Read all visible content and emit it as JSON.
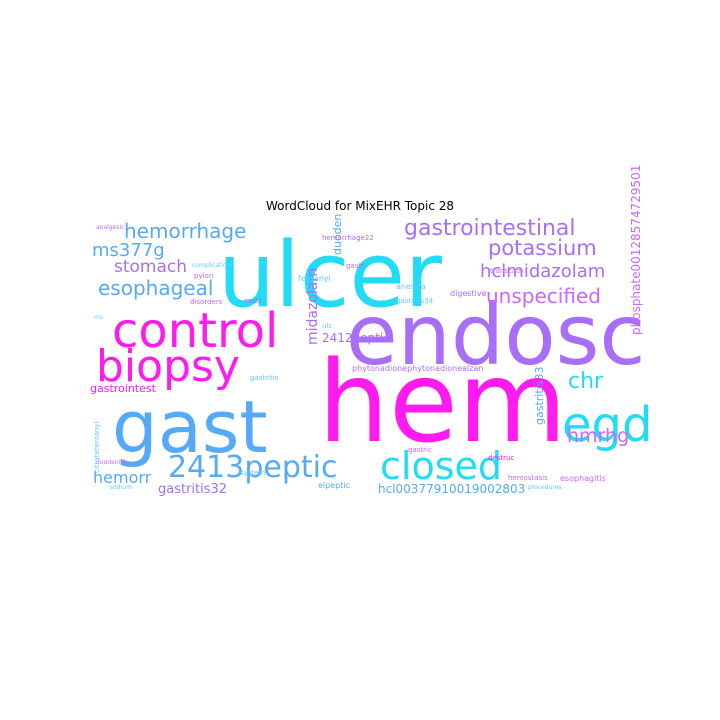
{
  "title": "WordCloud for MixEHR Topic 28",
  "palette": {
    "cyan": "#22dcf5",
    "blue": "#55aaf8",
    "magenta": "#ff1af0",
    "violet": "#a86ef8",
    "orchid": "#cc66ff",
    "lightblue": "#66c8ff"
  },
  "words": [
    {
      "id": "ulcer",
      "text": "ulcer",
      "color": "cyan"
    },
    {
      "id": "hem",
      "text": "hem",
      "color": "magenta"
    },
    {
      "id": "endosc",
      "text": "endosc",
      "color": "violet"
    },
    {
      "id": "gast",
      "text": "gast",
      "color": "blue"
    },
    {
      "id": "control",
      "text": "control",
      "color": "magenta"
    },
    {
      "id": "biopsy",
      "text": "biopsy",
      "color": "magenta"
    },
    {
      "id": "egd",
      "text": "egd",
      "color": "cyan"
    },
    {
      "id": "closed",
      "text": "closed",
      "color": "cyan"
    },
    {
      "id": "2413peptic",
      "text": "2413peptic",
      "color": "blue"
    },
    {
      "id": "gastrointestinal",
      "text": "gastrointestinal",
      "color": "violet"
    },
    {
      "id": "hemorrhage",
      "text": "hemorrhage",
      "color": "blue"
    },
    {
      "id": "potassium",
      "text": "potassium",
      "color": "violet"
    },
    {
      "id": "unspecified",
      "text": "unspecified",
      "color": "orchid"
    },
    {
      "id": "esophageal",
      "text": "esophageal",
      "color": "blue"
    },
    {
      "id": "hclmidazolam",
      "text": "hclmidazolam",
      "color": "violet"
    },
    {
      "id": "ms377g",
      "text": "ms377g",
      "color": "blue"
    },
    {
      "id": "stomach",
      "text": "stomach",
      "color": "violet"
    },
    {
      "id": "chr",
      "text": "chr",
      "color": "cyan"
    },
    {
      "id": "hmrhg",
      "text": "hmrhg",
      "color": "orchid"
    },
    {
      "id": "midazolam",
      "text": "midazolam",
      "color": "violet"
    },
    {
      "id": "phosphate",
      "text": "phosphate0012857472950​1",
      "color": "orchid"
    },
    {
      "id": "hemorr",
      "text": "hemorr",
      "color": "blue"
    },
    {
      "id": "gastritis32",
      "text": "gastritis32",
      "color": "violet"
    },
    {
      "id": "hcl",
      "text": "hcl00377910019002803",
      "color": "blue"
    },
    {
      "id": "gastrointest",
      "text": "gastrointest",
      "color": "magenta"
    },
    {
      "id": "2412peptic",
      "text": "2412peptic",
      "color": "violet"
    },
    {
      "id": "duoden",
      "text": "duoden",
      "color": "blue"
    },
    {
      "id": "gastritis33",
      "text": "gastritis33",
      "color": "blue"
    },
    {
      "id": "fentanyl",
      "text": "fentanyl",
      "color": "lightblue"
    },
    {
      "id": "anemia",
      "text": "anemia",
      "color": "lightblue"
    },
    {
      "id": "digestive",
      "text": "digestive",
      "color": "violet"
    },
    {
      "id": "disorders",
      "text": "disorders",
      "color": "orchid"
    },
    {
      "id": "esophagitis",
      "text": "esophagitis",
      "color": "orchid"
    },
    {
      "id": "gastritis34",
      "text": "gastritis34",
      "color": "lightblue"
    },
    {
      "id": "pylori",
      "text": "pylori",
      "color": "orchid"
    },
    {
      "id": "endo",
      "text": "endo",
      "color": "violet"
    },
    {
      "id": "system",
      "text": "system",
      "color": "lightblue"
    },
    {
      "id": "gastric",
      "text": "gastric",
      "color": "orchid"
    },
    {
      "id": "complications",
      "text": "complications",
      "color": "lightblue"
    },
    {
      "id": "hemostasis",
      "text": "hemostasis",
      "color": "orchid"
    },
    {
      "id": "transcath",
      "text": "transcath",
      "color": "orchid"
    },
    {
      "id": "duodenitis",
      "text": "duodenitis",
      "color": "orchid"
    },
    {
      "id": "analgesic",
      "text": "analgesic",
      "color": "orchid"
    },
    {
      "id": "gastr",
      "text": "gastr",
      "color": "violet"
    },
    {
      "id": "hemorrhage22",
      "text": "hemorrhage22",
      "color": "violet"
    },
    {
      "id": "ulc",
      "text": "ulc",
      "color": "lightblue"
    },
    {
      "id": "gastritis",
      "text": "gastritis",
      "color": "lightblue"
    },
    {
      "id": "destruc",
      "text": "destruc",
      "color": "magenta"
    },
    {
      "id": "elpeptic",
      "text": "elpeptic",
      "color": "blue"
    },
    {
      "id": "citratefentanyl",
      "text": "citratefentanyl",
      "color": "lightblue"
    },
    {
      "id": "sodium",
      "text": "sodium",
      "color": "lightblue"
    },
    {
      "id": "procedures",
      "text": "procedures",
      "color": "lightblue"
    },
    {
      "id": "phyto",
      "text": "phytonadionephytonadionealzan",
      "color": "violet"
    },
    {
      "id": "ms",
      "text": "ms",
      "color": "lightblue"
    }
  ]
}
